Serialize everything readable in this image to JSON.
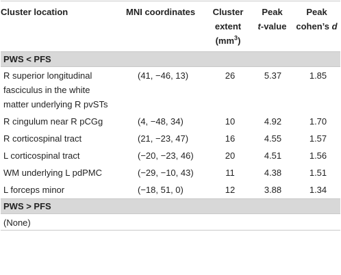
{
  "table": {
    "headers": {
      "c1": "Cluster location",
      "c2": "MNI coordinates",
      "c3_line1": "Cluster",
      "c3_line2": "extent",
      "c3_unit": "(mm",
      "c3_sup": "3",
      "c3_close": ")",
      "c4_line1": "Peak",
      "c4_italic": "t",
      "c4_rest": "-value",
      "c5_line1": "Peak",
      "c5_rest": "cohen’s ",
      "c5_italic": "d"
    },
    "section1": "PWS < PFS",
    "rows": [
      {
        "location": "R superior longitudinal fasciculus in the white matter underlying R pvSTs",
        "mni": "(41, −46, 13)",
        "extent": "26",
        "t": "5.37",
        "d": "1.85"
      },
      {
        "location": "R cingulum near R pCGg",
        "mni": "(4, −48, 34)",
        "extent": "10",
        "t": "4.92",
        "d": "1.70"
      },
      {
        "location": "R corticospinal tract",
        "mni": "(21, −23, 47)",
        "extent": "16",
        "t": "4.55",
        "d": "1.57"
      },
      {
        "location": "L corticospinal tract",
        "mni": "(−20, −23, 46)",
        "extent": "20",
        "t": "4.51",
        "d": "1.56"
      },
      {
        "location": "WM underlying L pdPMC",
        "mni": "(−29, −10, 43)",
        "extent": "11",
        "t": "4.38",
        "d": "1.51"
      },
      {
        "location": "L forceps minor",
        "mni": "(−18, 51, 0)",
        "extent": "12",
        "t": "3.88",
        "d": "1.34"
      }
    ],
    "section2": "PWS > PFS",
    "section2_body": "(None)"
  }
}
